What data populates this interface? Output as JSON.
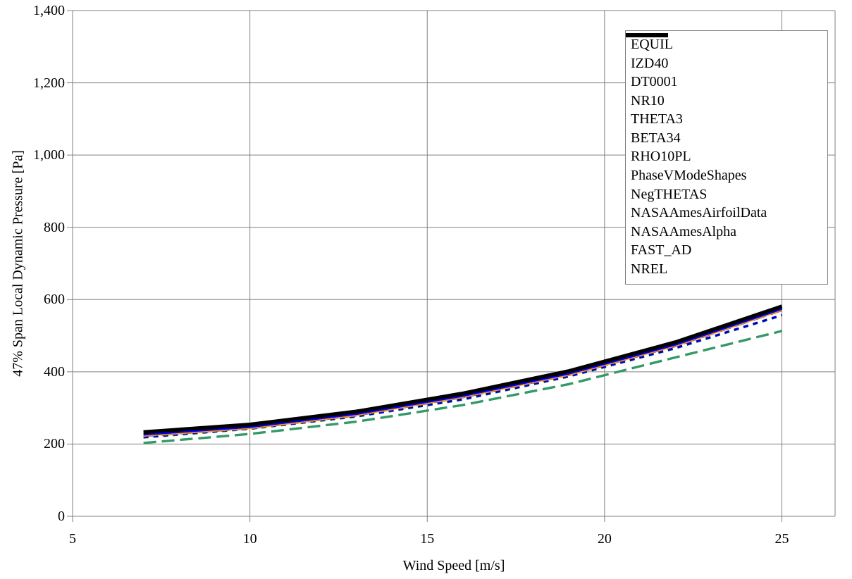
{
  "figure": {
    "background": "#ffffff",
    "grid_color": "#808080",
    "axis_color": "#808080",
    "legend_border_color": "#7f7f7f",
    "text_color": "#000000"
  },
  "chart_data": {
    "type": "line",
    "title": "",
    "xlabel": "Wind Speed [m/s]",
    "ylabel": "47% Span Local Dynamic Pressure [Pa]",
    "xlim": [
      5,
      26.5
    ],
    "ylim": [
      0,
      1400
    ],
    "x_ticks": [
      5,
      10,
      15,
      20,
      25
    ],
    "x_tick_labels": [
      "5",
      "10",
      "15",
      "20",
      "25"
    ],
    "y_ticks": [
      0,
      200,
      400,
      600,
      800,
      1000,
      1200,
      1400
    ],
    "y_tick_labels": [
      "0",
      "200",
      "400",
      "600",
      "800",
      "1,000",
      "1,200",
      "1,400"
    ],
    "grid": true,
    "legend_position": "upper-right",
    "x": [
      7,
      10,
      13,
      16,
      19,
      22,
      25
    ],
    "series": [
      {
        "name": "EQUIL",
        "color": "#FFFF00",
        "style": "short-dash",
        "values": [
          223,
          244,
          280,
          330,
          392,
          472,
          571
        ]
      },
      {
        "name": "IZD40",
        "color": "#FF9900",
        "style": "short-dash",
        "values": [
          223,
          244,
          280,
          330,
          392,
          472,
          571
        ]
      },
      {
        "name": "DT0001",
        "color": "#339966",
        "style": "short-dash",
        "values": [
          218,
          242,
          276,
          323,
          387,
          465,
          556
        ]
      },
      {
        "name": "NR10",
        "color": "#0000CC",
        "style": "short-dash",
        "values": [
          219,
          243,
          277,
          324,
          388,
          466,
          557
        ]
      },
      {
        "name": "THETA3",
        "color": "#FFFF00",
        "style": "long-dash",
        "values": [
          223,
          244,
          280,
          330,
          392,
          472,
          571
        ]
      },
      {
        "name": "BETA34",
        "color": "#FF9900",
        "style": "long-dash",
        "values": [
          223,
          244,
          280,
          330,
          392,
          472,
          571
        ]
      },
      {
        "name": "RHO10PL",
        "color": "#339966",
        "style": "long-dash",
        "values": [
          203,
          228,
          262,
          308,
          366,
          440,
          513
        ]
      },
      {
        "name": "PhaseVModeShapes",
        "color": "#0000CC",
        "style": "long-dash",
        "values": [
          223,
          244,
          280,
          330,
          392,
          472,
          571
        ]
      },
      {
        "name": "NegTHETAS",
        "color": "#FFFF00",
        "style": "solid",
        "values": [
          223,
          244,
          280,
          330,
          392,
          472,
          571
        ]
      },
      {
        "name": "NASAAmesAirfoilData",
        "color": "#FF9900",
        "style": "solid",
        "values": [
          223,
          244,
          280,
          330,
          392,
          472,
          571
        ]
      },
      {
        "name": "NASAAmesAlpha",
        "color": "#339966",
        "style": "solid",
        "values": [
          230,
          251,
          287,
          337,
          399,
          479,
          578
        ]
      },
      {
        "name": "FAST_AD",
        "color": "#0000FF",
        "style": "solid",
        "values": [
          226,
          247,
          283,
          333,
          395,
          475,
          574
        ]
      },
      {
        "name": "NREL",
        "color": "#000000",
        "style": "solid-thick",
        "values": [
          233,
          254,
          290,
          340,
          402,
          482,
          581
        ]
      }
    ]
  }
}
